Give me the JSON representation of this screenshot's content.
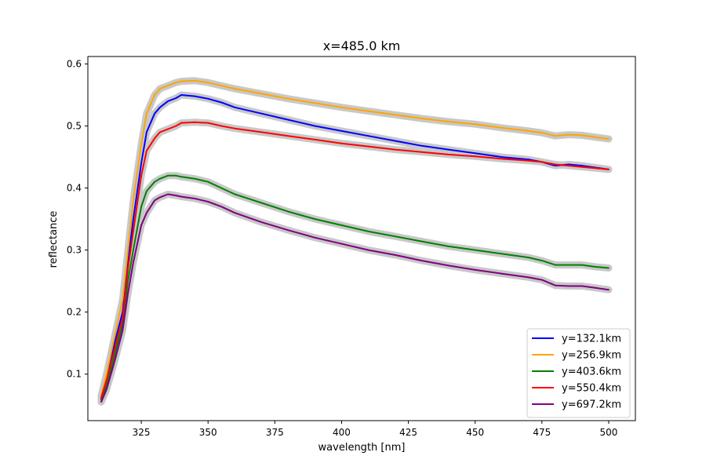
{
  "chart_data": {
    "type": "line",
    "title": "x=485.0 km",
    "xlabel": "wavelength [nm]",
    "ylabel": "reflectance",
    "xlim": [
      305,
      510
    ],
    "ylim": [
      0.025,
      0.612
    ],
    "xticks": [
      325,
      350,
      375,
      400,
      425,
      450,
      475,
      500
    ],
    "yticks": [
      0.1,
      0.2,
      0.3,
      0.4,
      0.5,
      0.6
    ],
    "grid": false,
    "legend_position": "lower-right",
    "uncertainty_band_color": "#c8c8c8",
    "series": [
      {
        "name": "y=132.1km",
        "color": "#0000ff",
        "x": [
          310,
          312,
          315,
          318,
          320,
          322,
          325,
          327,
          330,
          332,
          335,
          338,
          340,
          345,
          350,
          355,
          360,
          370,
          380,
          390,
          400,
          410,
          420,
          430,
          440,
          450,
          460,
          470,
          475,
          480,
          485,
          490,
          495,
          500
        ],
        "y": [
          0.06,
          0.09,
          0.15,
          0.2,
          0.28,
          0.35,
          0.44,
          0.49,
          0.52,
          0.53,
          0.54,
          0.545,
          0.55,
          0.548,
          0.544,
          0.538,
          0.53,
          0.52,
          0.51,
          0.5,
          0.492,
          0.484,
          0.476,
          0.468,
          0.462,
          0.456,
          0.45,
          0.446,
          0.442,
          0.436,
          0.438,
          0.436,
          0.433,
          0.43
        ]
      },
      {
        "name": "y=256.9km",
        "color": "#ffa500",
        "x": [
          310,
          312,
          315,
          318,
          320,
          322,
          325,
          327,
          330,
          332,
          335,
          338,
          340,
          345,
          350,
          355,
          360,
          370,
          380,
          390,
          400,
          410,
          420,
          430,
          440,
          450,
          460,
          470,
          475,
          480,
          485,
          490,
          495,
          500
        ],
        "y": [
          0.065,
          0.1,
          0.16,
          0.22,
          0.3,
          0.38,
          0.47,
          0.52,
          0.55,
          0.56,
          0.565,
          0.57,
          0.572,
          0.573,
          0.57,
          0.565,
          0.56,
          0.552,
          0.544,
          0.537,
          0.53,
          0.524,
          0.518,
          0.512,
          0.507,
          0.503,
          0.497,
          0.492,
          0.489,
          0.484,
          0.486,
          0.485,
          0.482,
          0.479
        ]
      },
      {
        "name": "y=403.6km",
        "color": "#008000",
        "x": [
          310,
          312,
          315,
          318,
          320,
          322,
          325,
          327,
          330,
          332,
          335,
          338,
          340,
          345,
          350,
          355,
          360,
          370,
          380,
          390,
          400,
          410,
          420,
          430,
          440,
          450,
          460,
          470,
          475,
          480,
          485,
          490,
          495,
          500
        ],
        "y": [
          0.058,
          0.08,
          0.13,
          0.18,
          0.25,
          0.3,
          0.37,
          0.395,
          0.41,
          0.415,
          0.42,
          0.42,
          0.418,
          0.415,
          0.41,
          0.4,
          0.39,
          0.376,
          0.362,
          0.35,
          0.34,
          0.33,
          0.322,
          0.314,
          0.306,
          0.3,
          0.294,
          0.288,
          0.283,
          0.276,
          0.276,
          0.276,
          0.273,
          0.271
        ]
      },
      {
        "name": "y=550.4km",
        "color": "#ff0000",
        "x": [
          310,
          312,
          315,
          318,
          320,
          322,
          325,
          327,
          330,
          332,
          335,
          338,
          340,
          345,
          350,
          355,
          360,
          370,
          380,
          390,
          400,
          410,
          420,
          430,
          440,
          450,
          460,
          470,
          475,
          480,
          485,
          490,
          495,
          500
        ],
        "y": [
          0.062,
          0.09,
          0.14,
          0.19,
          0.27,
          0.33,
          0.42,
          0.46,
          0.48,
          0.49,
          0.495,
          0.5,
          0.505,
          0.506,
          0.505,
          0.5,
          0.496,
          0.49,
          0.484,
          0.478,
          0.472,
          0.467,
          0.462,
          0.458,
          0.454,
          0.451,
          0.447,
          0.444,
          0.442,
          0.438,
          0.436,
          0.434,
          0.432,
          0.43
        ]
      },
      {
        "name": "y=697.2km",
        "color": "#800080",
        "x": [
          310,
          312,
          315,
          318,
          320,
          322,
          325,
          327,
          330,
          332,
          335,
          338,
          340,
          345,
          350,
          355,
          360,
          370,
          380,
          390,
          400,
          410,
          420,
          430,
          440,
          450,
          460,
          470,
          475,
          480,
          485,
          490,
          495,
          500
        ],
        "y": [
          0.055,
          0.075,
          0.12,
          0.17,
          0.23,
          0.28,
          0.34,
          0.36,
          0.38,
          0.385,
          0.39,
          0.388,
          0.386,
          0.383,
          0.378,
          0.37,
          0.36,
          0.345,
          0.332,
          0.32,
          0.31,
          0.3,
          0.292,
          0.283,
          0.275,
          0.268,
          0.262,
          0.256,
          0.252,
          0.243,
          0.242,
          0.242,
          0.239,
          0.236
        ]
      }
    ]
  }
}
